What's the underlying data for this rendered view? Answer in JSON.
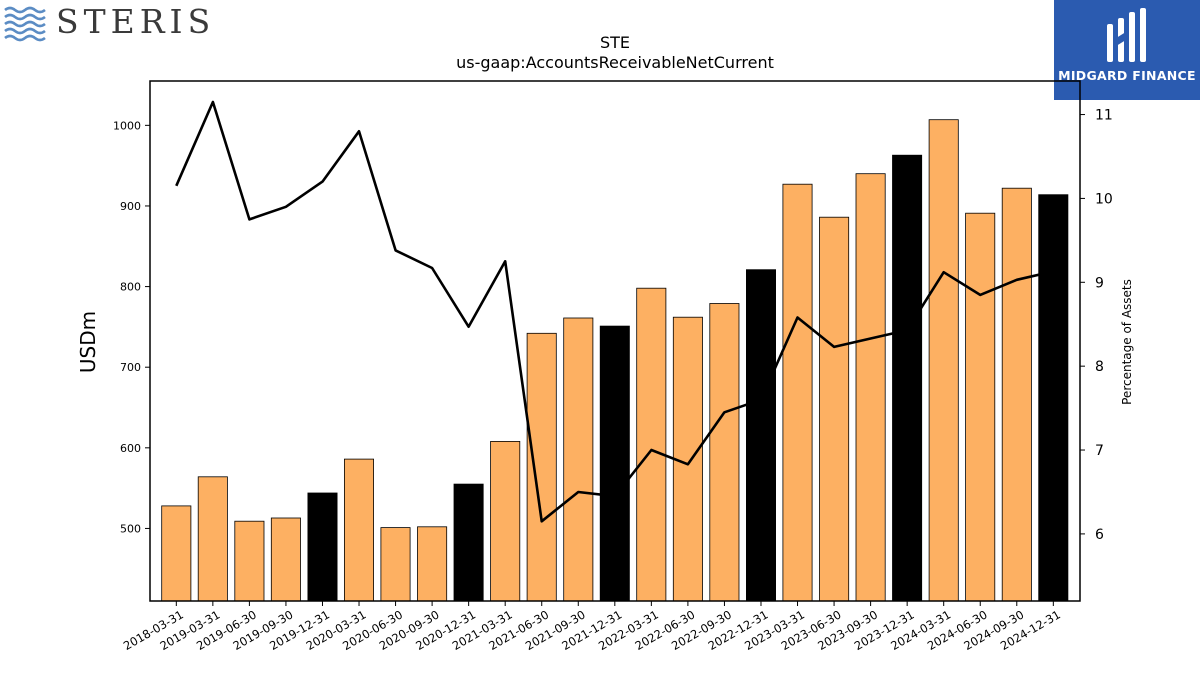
{
  "brand_left": {
    "name": "STERIS",
    "color": "#5b8cc4"
  },
  "brand_right": {
    "name": "MIDGARD FINANCE",
    "background": "#2b5bb0"
  },
  "chart_data": {
    "type": "bar",
    "title": "STE",
    "subtitle": "us-gaap:AccountsReceivableNetCurrent",
    "ylabel": "USDm",
    "y2label": "Percentage of Assets",
    "ylim": [
      410,
      1055
    ],
    "y2lim": [
      5.2,
      11.4
    ],
    "yticks": [
      500,
      600,
      700,
      800,
      900,
      1000
    ],
    "y2ticks": [
      6,
      7,
      8,
      9,
      10,
      11
    ],
    "colors": {
      "quarter": "#fdb062",
      "year_end": "#000000",
      "line": "#000000",
      "bar_edge": "#000000"
    },
    "categories": [
      "2018-03-31",
      "2019-03-31",
      "2019-06-30",
      "2019-09-30",
      "2019-12-31",
      "2020-03-31",
      "2020-06-30",
      "2020-09-30",
      "2020-12-31",
      "2021-03-31",
      "2021-06-30",
      "2021-09-30",
      "2021-12-31",
      "2022-03-31",
      "2022-06-30",
      "2022-09-30",
      "2022-12-31",
      "2023-03-31",
      "2023-06-30",
      "2023-09-30",
      "2023-12-31",
      "2024-03-31",
      "2024-06-30",
      "2024-09-30",
      "2024-12-31"
    ],
    "series": [
      {
        "values": [
          528,
          564,
          509,
          513,
          544,
          586,
          501,
          502,
          555,
          608,
          742,
          761,
          751,
          798,
          762,
          779,
          821,
          927,
          886,
          940,
          963,
          1007,
          891,
          922,
          914
        ]
      },
      {
        "values": [
          10.15,
          11.15,
          9.75,
          9.9,
          10.2,
          10.8,
          9.38,
          9.17,
          8.47,
          9.25,
          6.15,
          6.5,
          6.45,
          7.0,
          6.83,
          7.45,
          7.6,
          8.58,
          8.23,
          8.33,
          8.43,
          9.12,
          8.85,
          9.03,
          9.13
        ]
      }
    ],
    "year_end_flags": [
      false,
      false,
      false,
      false,
      true,
      false,
      false,
      false,
      true,
      false,
      false,
      false,
      true,
      false,
      false,
      false,
      true,
      false,
      false,
      false,
      true,
      false,
      false,
      false,
      true
    ]
  }
}
